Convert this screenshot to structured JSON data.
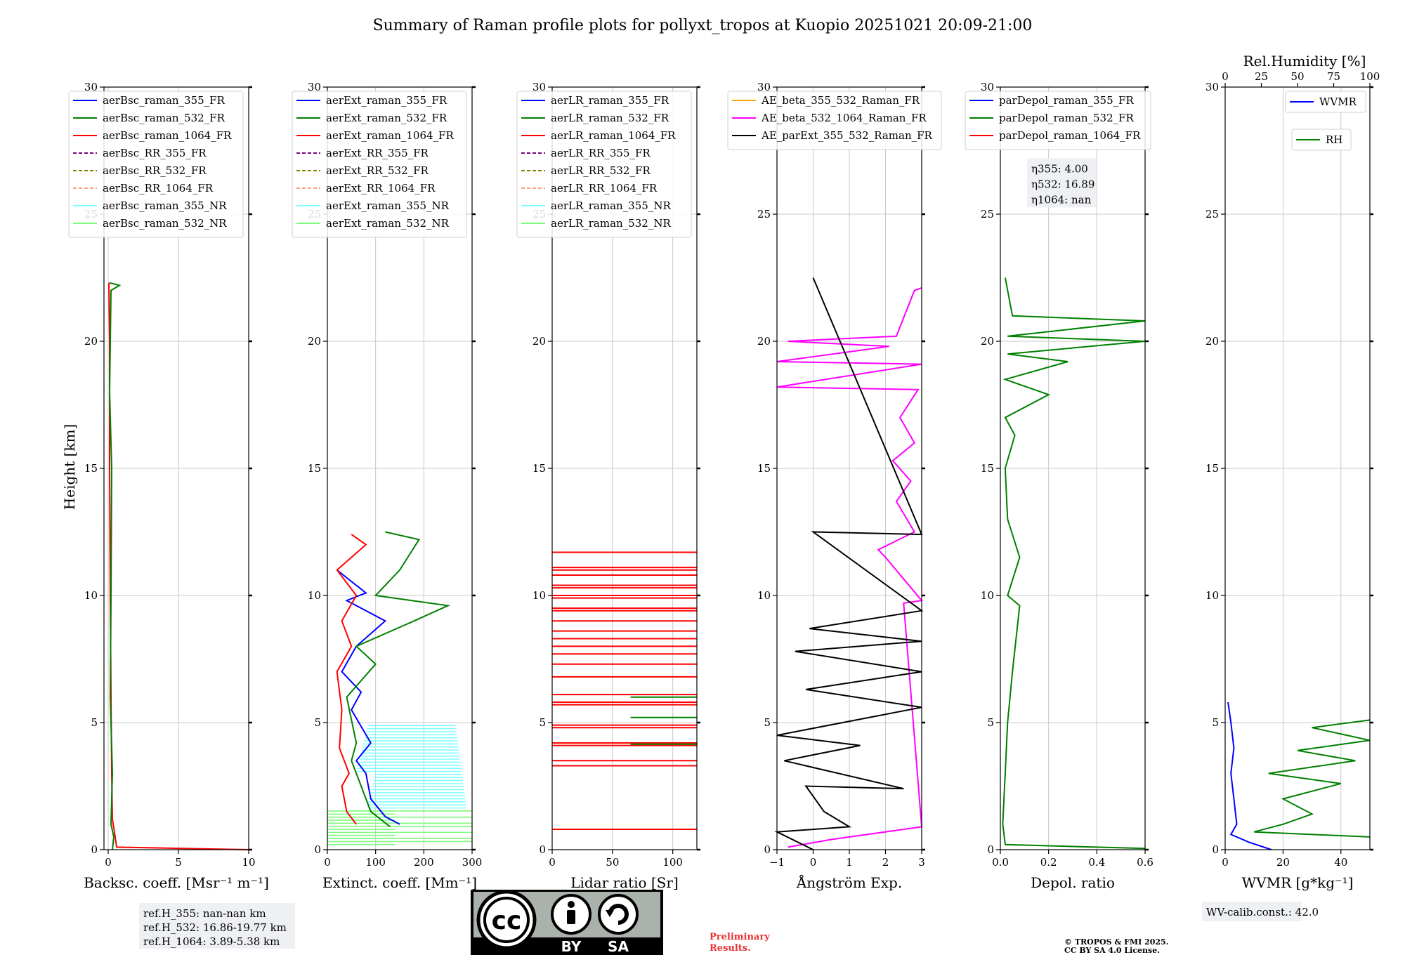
{
  "figure": {
    "title": "Summary of Raman profile plots for pollyxt_tropos at Kuopio 20251021 20:09-21:00"
  },
  "ylabel": "Height [km]",
  "colors": {
    "blue": "#0000ff",
    "green": "#008000",
    "red": "#ff0000",
    "purple": "#800080",
    "olive": "#808000",
    "salmon": "#ffa07a",
    "cyan": "#7fffff",
    "lightgreen": "#7cfc7c",
    "orange": "#ffa500",
    "magenta": "#ff00ff",
    "black": "#000000",
    "panelbox": "#eef0f4"
  },
  "chart_data": [
    {
      "type": "line",
      "id": "backscatter",
      "xlabel": "Backsc. coeff. [Msr⁻¹ m⁻¹]",
      "xlim": [
        -0.3,
        10
      ],
      "ylim": [
        0,
        30
      ],
      "xticks": [
        0,
        5,
        10
      ],
      "yticks": [
        0,
        5,
        10,
        15,
        20,
        25,
        30
      ],
      "legend": [
        "aerBsc_raman_355_FR",
        "aerBsc_raman_532_FR",
        "aerBsc_raman_1064_FR",
        "aerBsc_RR_355_FR",
        "aerBsc_RR_532_FR",
        "aerBsc_RR_1064_FR",
        "aerBsc_raman_355_NR",
        "aerBsc_raman_532_NR"
      ],
      "legend_styles": [
        "blue",
        "green",
        "red",
        "purple-dash",
        "olive-dash",
        "salmon-dash",
        "cyan",
        "lightgreen"
      ],
      "series": [
        {
          "name": "aerBsc_raman_1064_FR",
          "color": "red",
          "points": [
            [
              10,
              0
            ],
            [
              0.6,
              0.1
            ],
            [
              0.5,
              0.5
            ],
            [
              0.3,
              1.2
            ],
            [
              0.25,
              3
            ],
            [
              0.2,
              6
            ],
            [
              0.15,
              10
            ],
            [
              0.1,
              15
            ],
            [
              0.1,
              20
            ],
            [
              0.05,
              22.3
            ]
          ]
        },
        {
          "name": "aerBsc_raman_532_FR",
          "color": "green",
          "points": [
            [
              0.3,
              0
            ],
            [
              0.4,
              0.5
            ],
            [
              0.2,
              1
            ],
            [
              0.3,
              3
            ],
            [
              0.15,
              6
            ],
            [
              0.2,
              10
            ],
            [
              0.25,
              15
            ],
            [
              0.1,
              18
            ],
            [
              0.2,
              22
            ],
            [
              0.8,
              22.2
            ],
            [
              0.1,
              22.3
            ]
          ]
        }
      ],
      "ref_box": [
        "ref.H_355: nan-nan km",
        "ref.H_532: 16.86-19.77 km",
        "ref.H_1064: 3.89-5.38 km"
      ]
    },
    {
      "type": "line",
      "id": "extinction",
      "xlabel": "Extinct. coeff. [Mm⁻¹]",
      "xlim": [
        0,
        300
      ],
      "ylim": [
        0,
        30
      ],
      "xticks": [
        0,
        100,
        200,
        300
      ],
      "yticks": [
        0,
        5,
        10,
        15,
        20,
        25,
        30
      ],
      "legend": [
        "aerExt_raman_355_FR",
        "aerExt_raman_532_FR",
        "aerExt_raman_1064_FR",
        "aerExt_RR_355_FR",
        "aerExt_RR_532_FR",
        "aerExt_RR_1064_FR",
        "aerExt_raman_355_NR",
        "aerExt_raman_532_NR"
      ],
      "legend_styles": [
        "blue",
        "green",
        "red",
        "purple-dash",
        "olive-dash",
        "salmon-dash",
        "cyan",
        "lightgreen"
      ],
      "series": [
        {
          "name": "aerExt_raman_355_FR",
          "color": "blue",
          "points": [
            [
              150,
              1
            ],
            [
              120,
              1.3
            ],
            [
              90,
              2
            ],
            [
              80,
              3
            ],
            [
              60,
              3.5
            ],
            [
              90,
              4.2
            ],
            [
              50,
              5.5
            ],
            [
              70,
              6.2
            ],
            [
              30,
              7
            ],
            [
              60,
              8
            ],
            [
              120,
              9
            ],
            [
              40,
              9.8
            ],
            [
              80,
              10.1
            ],
            [
              20,
              11
            ]
          ]
        },
        {
          "name": "aerExt_raman_532_FR",
          "color": "green",
          "points": [
            [
              130,
              0.9
            ],
            [
              90,
              1.5
            ],
            [
              70,
              2.5
            ],
            [
              50,
              3.5
            ],
            [
              60,
              4.2
            ],
            [
              40,
              6
            ],
            [
              100,
              7.3
            ],
            [
              60,
              8
            ],
            [
              180,
              9
            ],
            [
              250,
              9.6
            ],
            [
              100,
              10
            ],
            [
              150,
              11
            ],
            [
              190,
              12.2
            ],
            [
              120,
              12.5
            ]
          ]
        },
        {
          "name": "aerExt_raman_1064_FR",
          "color": "red",
          "points": [
            [
              60,
              1
            ],
            [
              40,
              1.5
            ],
            [
              30,
              2.5
            ],
            [
              45,
              3
            ],
            [
              25,
              4
            ],
            [
              30,
              5.5
            ],
            [
              20,
              7
            ],
            [
              50,
              8
            ],
            [
              30,
              9
            ],
            [
              60,
              10
            ],
            [
              20,
              11
            ],
            [
              80,
              12
            ],
            [
              50,
              12.4
            ]
          ]
        }
      ],
      "nr_band": {
        "from_km": 0.2,
        "to_km": 5.0
      }
    },
    {
      "type": "line",
      "id": "lidar_ratio",
      "xlabel": "Lidar ratio [Sr]",
      "xlim": [
        0,
        120
      ],
      "ylim": [
        0,
        30
      ],
      "xticks": [
        0,
        50,
        100
      ],
      "yticks": [
        0,
        5,
        10,
        15,
        20,
        25,
        30
      ],
      "legend": [
        "aerLR_raman_355_FR",
        "aerLR_raman_532_FR",
        "aerLR_raman_1064_FR",
        "aerLR_RR_355_FR",
        "aerLR_RR_532_FR",
        "aerLR_RR_1064_FR",
        "aerLR_raman_355_NR",
        "aerLR_raman_532_NR"
      ],
      "legend_styles": [
        "blue",
        "green",
        "red",
        "purple-dash",
        "olive-dash",
        "salmon-dash",
        "cyan",
        "lightgreen"
      ],
      "red_lines_km": [
        0.8,
        3.3,
        3.5,
        4.1,
        4.2,
        4.8,
        4.9,
        5.7,
        5.8,
        6.1,
        6.8,
        7.3,
        7.7,
        8.0,
        8.3,
        8.6,
        9.0,
        9.4,
        9.5,
        9.9,
        10.0,
        10.3,
        10.4,
        10.8,
        11.0,
        11.1,
        11.7
      ],
      "green_lines_km": [
        4.15,
        5.2,
        6.0
      ]
    },
    {
      "type": "line",
      "id": "angstrom",
      "xlabel": "Ångström Exp.",
      "xlim": [
        -1,
        3
      ],
      "ylim": [
        0,
        30
      ],
      "xticks": [
        -1,
        0,
        1,
        2,
        3
      ],
      "yticks": [
        0,
        5,
        10,
        15,
        20,
        25,
        30
      ],
      "legend": [
        "AE_beta_355_532_Raman_FR",
        "AE_beta_532_1064_Raman_FR",
        "AE_parExt_355_532_Raman_FR"
      ],
      "legend_styles": [
        "orange",
        "magenta",
        "black"
      ],
      "series": [
        {
          "name": "AE_beta_532_1064_Raman_FR",
          "color": "magenta",
          "points": [
            [
              -0.7,
              0.1
            ],
            [
              0.5,
              0.4
            ],
            [
              1.5,
              0.6
            ],
            [
              3,
              0.9
            ],
            [
              2.5,
              9.7
            ],
            [
              3,
              9.8
            ],
            [
              2,
              11.5
            ],
            [
              1.8,
              11.8
            ],
            [
              2.8,
              12.5
            ],
            [
              2.3,
              13.7
            ],
            [
              2.7,
              14.5
            ],
            [
              2.2,
              15.3
            ],
            [
              2.8,
              16
            ],
            [
              2.4,
              17
            ],
            [
              2.9,
              18.1
            ],
            [
              -1,
              18.2
            ],
            [
              3,
              19.1
            ],
            [
              -1,
              19.2
            ],
            [
              2.1,
              19.8
            ],
            [
              -0.7,
              20
            ],
            [
              2.3,
              20.2
            ],
            [
              2.8,
              22
            ],
            [
              3,
              22.1
            ]
          ]
        },
        {
          "name": "AE_parExt_355_532_Raman_FR",
          "color": "black",
          "points": [
            [
              0,
              0
            ],
            [
              -1,
              0.7
            ],
            [
              1,
              0.9
            ],
            [
              0.3,
              1.5
            ],
            [
              -0.2,
              2.5
            ],
            [
              2.5,
              2.4
            ],
            [
              -0.8,
              3.5
            ],
            [
              1.3,
              4.1
            ],
            [
              -1,
              4.5
            ],
            [
              3,
              5.6
            ],
            [
              -0.2,
              6.3
            ],
            [
              3,
              7
            ],
            [
              -0.5,
              7.8
            ],
            [
              3,
              8.2
            ],
            [
              -0.1,
              8.7
            ],
            [
              3,
              9.4
            ],
            [
              0,
              12.5
            ],
            [
              3,
              12.4
            ],
            [
              0,
              22.5
            ]
          ]
        }
      ]
    },
    {
      "type": "line",
      "id": "depol",
      "xlabel": "Depol. ratio",
      "xlim": [
        0,
        0.6
      ],
      "ylim": [
        0,
        30
      ],
      "xticks": [
        0.0,
        0.2,
        0.4,
        0.6
      ],
      "xtick_labels": [
        "0.0",
        "0.2",
        "0.4",
        "0.6"
      ],
      "yticks": [
        0,
        5,
        10,
        15,
        20,
        25,
        30
      ],
      "legend": [
        "parDepol_raman_355_FR",
        "parDepol_raman_532_FR",
        "parDepol_raman_1064_FR"
      ],
      "legend_styles": [
        "blue",
        "green",
        "red"
      ],
      "series": [
        {
          "name": "parDepol_raman_532_FR",
          "color": "green",
          "points": [
            [
              0.6,
              0.05
            ],
            [
              0.02,
              0.2
            ],
            [
              0.01,
              1
            ],
            [
              0.02,
              3
            ],
            [
              0.03,
              5
            ],
            [
              0.05,
              7
            ],
            [
              0.08,
              9.6
            ],
            [
              0.03,
              10
            ],
            [
              0.08,
              11.5
            ],
            [
              0.03,
              13
            ],
            [
              0.02,
              15
            ],
            [
              0.06,
              16.3
            ],
            [
              0.02,
              17
            ],
            [
              0.2,
              17.9
            ],
            [
              0.02,
              18.5
            ],
            [
              0.28,
              19.2
            ],
            [
              0.03,
              19.5
            ],
            [
              0.6,
              20
            ],
            [
              0.03,
              20.2
            ],
            [
              0.6,
              20.8
            ],
            [
              0.05,
              21
            ],
            [
              0.02,
              22.5
            ]
          ]
        }
      ],
      "eta_box": [
        "η355: 4.00",
        "η532: 16.89",
        "η1064: nan"
      ]
    },
    {
      "type": "line",
      "id": "wvmr",
      "xlabel": "WVMR [g*kg⁻¹]",
      "xlim": [
        0,
        50
      ],
      "ylim": [
        0,
        30
      ],
      "xticks": [
        0,
        20,
        40
      ],
      "yticks": [
        0,
        5,
        10,
        15,
        20,
        25,
        30
      ],
      "top_label": "Rel.Humidity [%]",
      "top_xlim": [
        0,
        100
      ],
      "top_ticks": [
        0,
        25,
        50,
        75,
        100
      ],
      "legend_wv": "WVMR",
      "legend_rh": "RH",
      "series": [
        {
          "name": "WVMR",
          "color": "blue",
          "axis": "bottom",
          "points": [
            [
              16,
              0
            ],
            [
              8,
              0.3
            ],
            [
              2,
              0.6
            ],
            [
              4,
              1
            ],
            [
              3,
              2
            ],
            [
              2,
              3
            ],
            [
              3,
              4
            ],
            [
              2,
              5
            ],
            [
              1,
              5.8
            ]
          ]
        },
        {
          "name": "RH",
          "color": "green",
          "axis": "top",
          "points": [
            [
              100,
              0.5
            ],
            [
              20,
              0.7
            ],
            [
              40,
              1
            ],
            [
              60,
              1.4
            ],
            [
              40,
              2
            ],
            [
              80,
              2.6
            ],
            [
              30,
              3
            ],
            [
              90,
              3.5
            ],
            [
              50,
              3.9
            ],
            [
              100,
              4.3
            ],
            [
              60,
              4.8
            ],
            [
              100,
              5.1
            ]
          ]
        }
      ],
      "calib_box": "WV-calib.const.: 42.0"
    }
  ],
  "footer": {
    "license_badge": {
      "by": "BY",
      "sa": "SA",
      "cc": "cc"
    },
    "preliminary": [
      "Preliminary",
      "Results."
    ],
    "copyright": [
      "© TROPOS & FMI 2025.",
      "CC BY SA 4.0 License."
    ]
  }
}
